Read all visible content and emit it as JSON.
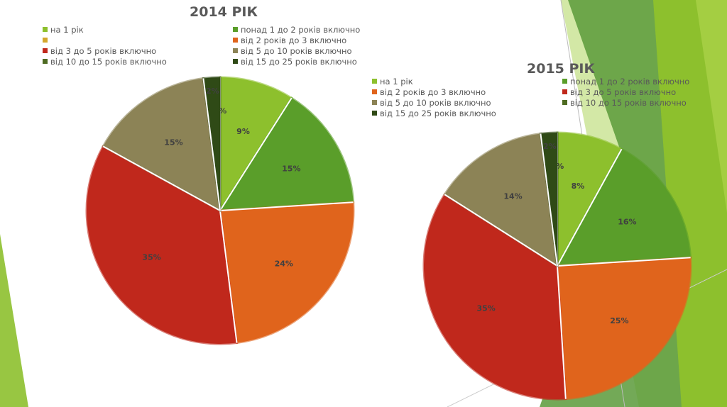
{
  "colors": {
    "na1": "#8dc02d",
    "p1_2": "#5a9e2a",
    "blank": "#d4a72c",
    "v2_3": "#e0641c",
    "v3_5": "#c0281c",
    "v5_10": "#8c8356",
    "v10_15": "#4e6b22",
    "v15_25": "#2f4a16"
  },
  "chart_data": [
    {
      "type": "pie",
      "title": "2014 РІК",
      "legend_position": "top",
      "categories": [
        "на 1 рік",
        "понад 1 до 2 років включно",
        "",
        "від 2 років до 3 включно",
        "від 3 до 5 років включно",
        "від 5 до 10 років включно",
        "від 10 до 15 років включно",
        "від 15 до 25 років включно"
      ],
      "legend": [
        {
          "label": "на 1 рік",
          "color": "#8dc02d"
        },
        {
          "label": "понад 1 до 2 років включно",
          "color": "#5a9e2a"
        },
        {
          "label": "",
          "color": "#d4a72c"
        },
        {
          "label": "від 2 років до 3 включно",
          "color": "#e0641c"
        },
        {
          "label": "від 3 до 5 років включно",
          "color": "#c0281c"
        },
        {
          "label": "від 5 до 10 років включно",
          "color": "#8c8356"
        },
        {
          "label": "від 10 до 15 років включно",
          "color": "#4e6b22"
        },
        {
          "label": "від 15 до 25 років включно",
          "color": "#2f4a16"
        }
      ],
      "slices": [
        {
          "value": 9,
          "label": "9%",
          "color": "#8dc02d"
        },
        {
          "value": 15,
          "label": "15%",
          "color": "#5a9e2a"
        },
        {
          "value": 0,
          "label": "",
          "color": "#d4a72c"
        },
        {
          "value": 24,
          "label": "24%",
          "color": "#e0641c"
        },
        {
          "value": 35,
          "label": "35%",
          "color": "#c0281c"
        },
        {
          "value": 15,
          "label": "15%",
          "color": "#8c8356"
        },
        {
          "value": 0,
          "label": "0%",
          "color": "#4e6b22"
        },
        {
          "value": 2,
          "label": "2%",
          "color": "#2f4a16"
        }
      ]
    },
    {
      "type": "pie",
      "title": "2015 РІК",
      "legend_position": "top",
      "categories": [
        "на 1 рік",
        "понад 1 до 2 років включно",
        "від 2 років до 3 включно",
        "від 3 до 5 років включно",
        "від 5 до 10 років включно",
        "від 10 до 15 років включно",
        "від 15 до 25 років включно"
      ],
      "legend": [
        {
          "label": "на 1 рік",
          "color": "#8dc02d"
        },
        {
          "label": "понад 1 до 2 років включно",
          "color": "#5a9e2a"
        },
        {
          "label": "від 2 років до 3 включно",
          "color": "#e0641c"
        },
        {
          "label": "від 3 до 5 років включно",
          "color": "#c0281c"
        },
        {
          "label": "від 5 до 10 років включно",
          "color": "#8c8356"
        },
        {
          "label": "від 10 до 15 років включно",
          "color": "#4e6b22"
        },
        {
          "label": "від 15 до 25 років включно",
          "color": "#2f4a16"
        }
      ],
      "slices": [
        {
          "value": 8,
          "label": "8%",
          "color": "#8dc02d"
        },
        {
          "value": 16,
          "label": "16%",
          "color": "#5a9e2a"
        },
        {
          "value": 25,
          "label": "25%",
          "color": "#e0641c"
        },
        {
          "value": 35,
          "label": "35%",
          "color": "#c0281c"
        },
        {
          "value": 14,
          "label": "14%",
          "color": "#8c8356"
        },
        {
          "value": 0,
          "label": "0%",
          "color": "#4e6b22"
        },
        {
          "value": 2,
          "label": "2%",
          "color": "#2f4a16"
        }
      ]
    }
  ]
}
